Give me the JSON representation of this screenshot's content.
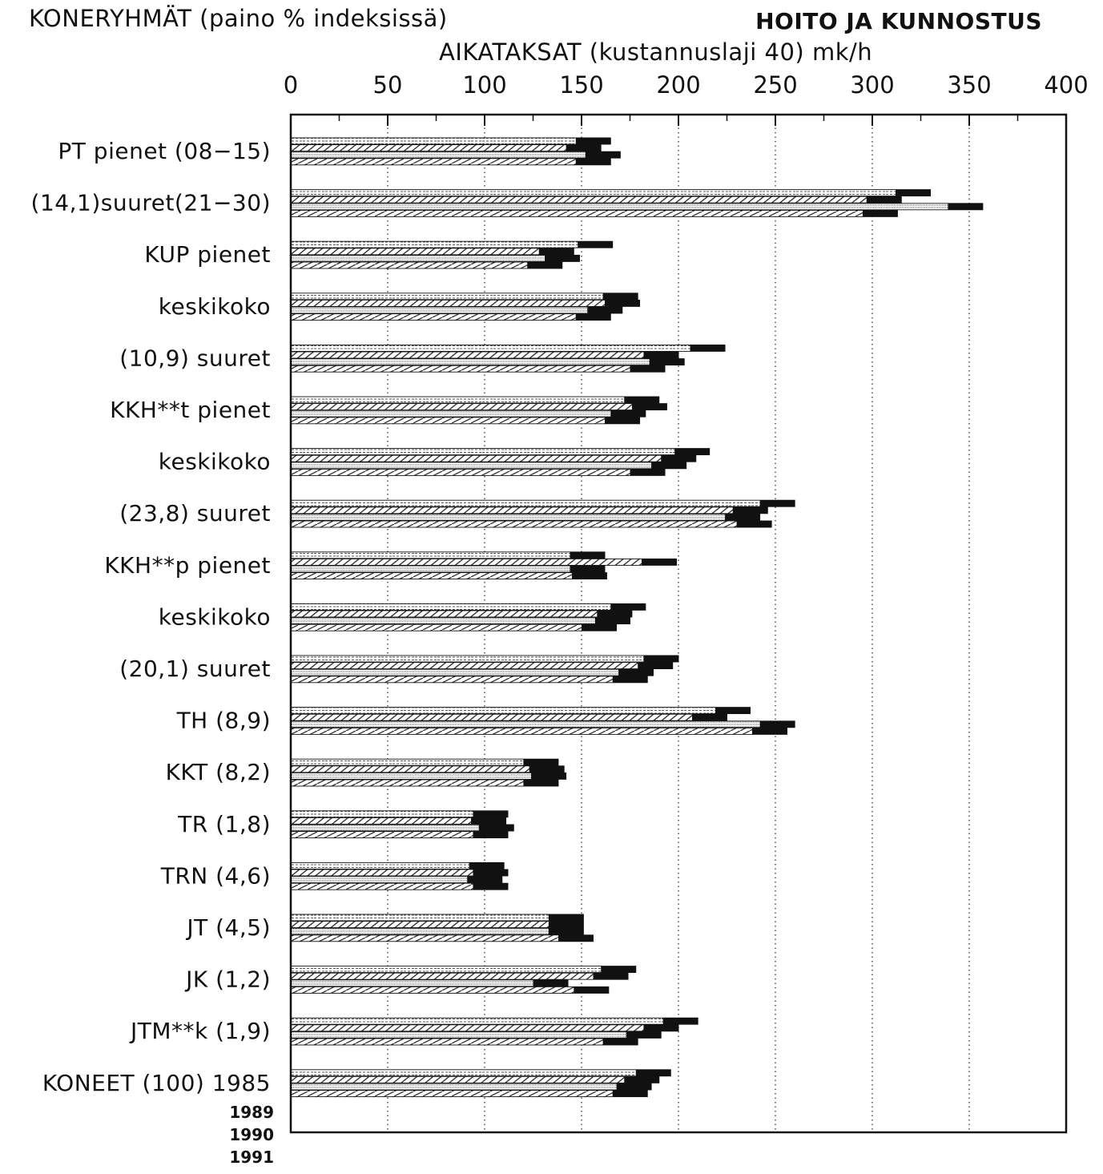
{
  "header": {
    "left_title": "KONERYHMÄT (paino % indeksissä)",
    "right_title": "HOITO JA KUNNOSTUS",
    "axis_title": "AIKATAKSAT (kustannuslaji 40) mk/h"
  },
  "chart_data": {
    "type": "bar",
    "orientation": "horizontal",
    "title": "HOITO JA KUNNOSTUS",
    "xlabel": "AIKATAKSAT (kustannuslaji 40) mk/h",
    "ylabel": "KONERYHMÄT (paino % indeksissä)",
    "xlim": [
      0,
      400
    ],
    "xticks": [
      0,
      50,
      100,
      150,
      200,
      250,
      300,
      350,
      400
    ],
    "grid": "vertical dotted",
    "categories": [
      "PT pienet (08−15)",
      "(14,1)suuret(21−30)",
      "KUP pienet",
      "keskikoko",
      "(10,9) suuret",
      "KKH**t pienet",
      "keskikoko",
      "(23,8) suuret",
      "KKH**p pienet",
      "keskikoko",
      "(20,1) suuret",
      "TH (8,9)",
      "KKT (8,2)",
      "TR (1,8)",
      "TRN (4,6)",
      "JT (4,5)",
      "JK (1,2)",
      "JTM**k (1,9)",
      "KONEET (100) 1985"
    ],
    "year_labels": [
      "1989",
      "1990",
      "1991"
    ],
    "series": [
      {
        "name": "1985",
        "values": [
          165,
          330,
          166,
          179,
          224,
          190,
          216,
          260,
          162,
          183,
          200,
          237,
          138,
          112,
          110,
          151,
          178,
          210,
          196
        ]
      },
      {
        "name": "1989",
        "values": [
          160,
          315,
          146,
          180,
          200,
          194,
          209,
          246,
          199,
          176,
          197,
          225,
          141,
          111,
          112,
          151,
          174,
          200,
          190
        ]
      },
      {
        "name": "1990",
        "values": [
          170,
          357,
          149,
          171,
          203,
          183,
          204,
          242,
          162,
          175,
          187,
          260,
          142,
          115,
          109,
          151,
          143,
          191,
          186
        ]
      },
      {
        "name": "1991",
        "values": [
          165,
          313,
          140,
          165,
          193,
          180,
          193,
          248,
          163,
          168,
          184,
          256,
          138,
          112,
          112,
          156,
          164,
          179,
          184
        ]
      }
    ]
  }
}
